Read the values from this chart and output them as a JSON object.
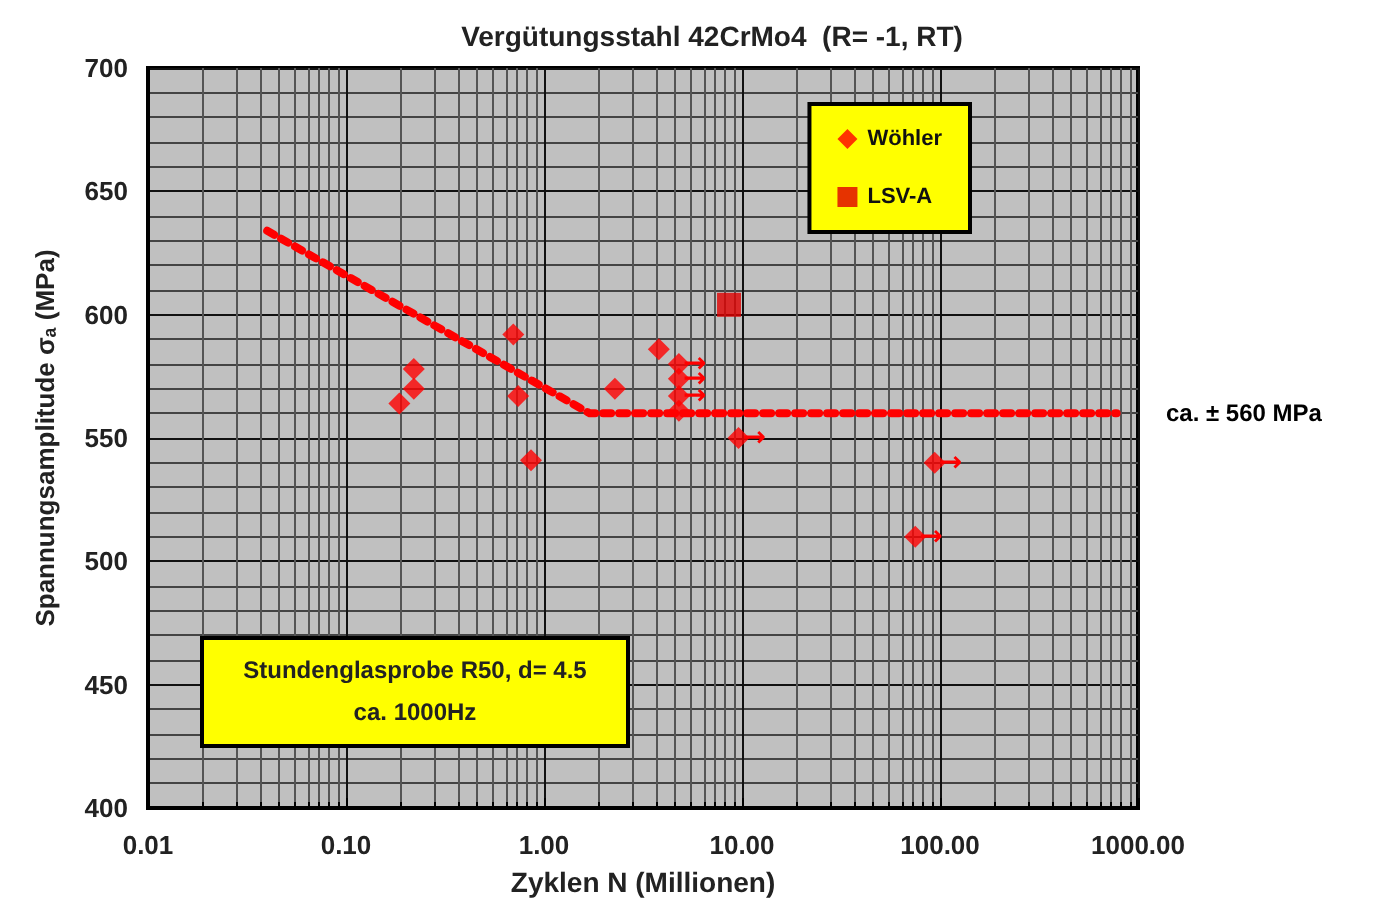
{
  "chart_data": {
    "type": "scatter",
    "title": "Vergütungsstahl 42CrMo4  (R= -1, RT)",
    "xlabel": "Zyklen N (Millionen)",
    "ylabel": "Spannungsamplitude σₐ (MPa)",
    "log": "x",
    "grid": true,
    "legend": "top right",
    "xlim": [
      0.01,
      1000
    ],
    "xticks": [
      {
        "value": 0.01,
        "label": "0.01"
      },
      {
        "value": 0.1,
        "label": "0.10"
      },
      {
        "value": 1,
        "label": "1.00"
      },
      {
        "value": 10,
        "label": "10.00"
      },
      {
        "value": 100,
        "label": "100.00"
      },
      {
        "value": 1000,
        "label": "1000.00"
      }
    ],
    "ylim": [
      400,
      700
    ],
    "yticks": [
      400,
      450,
      500,
      550,
      600,
      650,
      700
    ],
    "series": [
      {
        "name": "Wöhler",
        "marker": "diamond",
        "color": "#ff0000",
        "x": [
          0.186,
          0.22,
          0.22,
          0.7,
          0.74,
          0.86,
          2.28,
          3.8,
          4.8,
          4.8,
          4.8,
          4.8,
          9.6,
          94,
          75
        ],
        "values": [
          564,
          570,
          578,
          592,
          567,
          541,
          570,
          586,
          580,
          574,
          567,
          561,
          550,
          540,
          510
        ]
      },
      {
        "name": "LSV-A",
        "marker": "square",
        "color": "#e00000",
        "x": [
          8.6
        ],
        "values": [
          604
        ]
      },
      {
        "type": "line",
        "marker": "none",
        "line_style": "dotted",
        "color": "#ff0000",
        "x": [
          0.04,
          1.7,
          780
        ],
        "values": [
          634,
          560,
          560
        ]
      }
    ],
    "annotations": [
      "ca. ± 560 MPa",
      "Stundenglasprobe R50, d= 4.5",
      "ca. 1000Hz",
      {
        "text": "→",
        "x": 4.8,
        "y": 580
      },
      {
        "text": "→",
        "x": 4.8,
        "y": 574
      },
      {
        "text": "→",
        "x": 4.8,
        "y": 567
      },
      {
        "text": "→",
        "x": 9.6,
        "y": 550
      },
      {
        "text": "→",
        "x": 94,
        "y": 540
      },
      {
        "text": "→",
        "x": 75,
        "y": 510
      }
    ]
  }
}
